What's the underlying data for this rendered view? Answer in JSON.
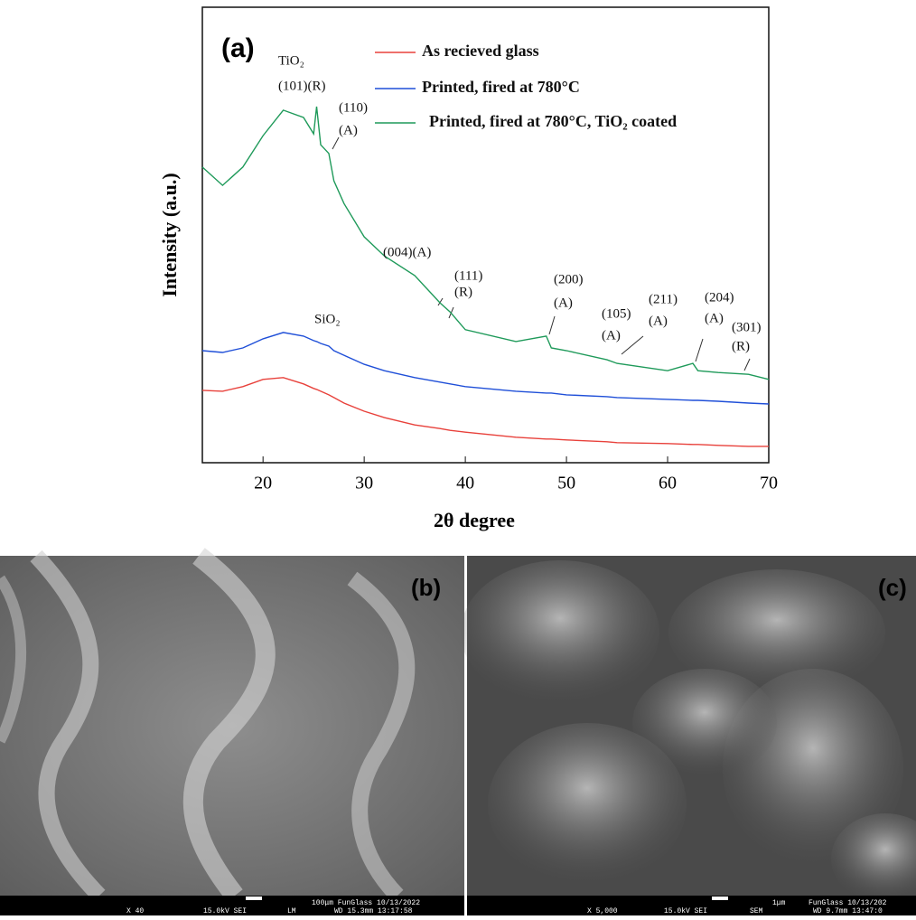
{
  "chart_data": {
    "type": "line",
    "panel_label": "(a)",
    "xlabel": "2θ degree",
    "ylabel": "Intensity (a.u.)",
    "x": [
      14,
      16,
      18,
      20,
      22,
      24,
      25,
      25.3,
      25.7,
      26.5,
      27,
      28,
      30,
      32,
      35,
      37.5,
      38.5,
      40,
      45,
      48,
      48.5,
      50,
      54,
      55,
      60,
      62.5,
      63,
      65,
      68,
      70
    ],
    "series": [
      {
        "name": "As recieved glass",
        "color": "#e8413b",
        "values": [
          15.9,
          15.7,
          16.7,
          18.3,
          18.7,
          17.3,
          16.3,
          16.1,
          15.7,
          14.9,
          14.3,
          13.1,
          11.3,
          9.9,
          8.3,
          7.5,
          7.1,
          6.7,
          5.6,
          5.2,
          5.2,
          5.0,
          4.6,
          4.4,
          4.2,
          4.0,
          4.0,
          3.8,
          3.6,
          3.6
        ]
      },
      {
        "name": "Printed, fired at 780°C",
        "color": "#1f4fd8",
        "values": [
          24.6,
          24.2,
          25.2,
          27.2,
          28.6,
          27.8,
          26.8,
          26.6,
          26.2,
          25.6,
          24.6,
          23.6,
          21.6,
          20.2,
          18.7,
          17.7,
          17.3,
          16.7,
          15.7,
          15.3,
          15.3,
          14.9,
          14.5,
          14.3,
          13.9,
          13.7,
          13.7,
          13.5,
          13.1,
          12.9
        ]
      },
      {
        "name": "Printed, fired at 780°C, TiO₂ coated",
        "color": "#1f9a5a",
        "values": [
          64.9,
          60.9,
          64.9,
          71.8,
          77.4,
          75.8,
          72.2,
          78.2,
          69.8,
          67.9,
          61.9,
          56.9,
          49.6,
          45.4,
          41.1,
          35.1,
          33.1,
          29.2,
          26.6,
          27.8,
          25.2,
          24.6,
          22.6,
          21.8,
          20.2,
          21.8,
          20.2,
          19.8,
          19.4,
          18.3
        ]
      }
    ],
    "xlim": [
      14,
      70
    ],
    "xticks": [
      20,
      30,
      40,
      50,
      60,
      70
    ],
    "ylim": [
      0,
      100
    ],
    "annotations": [
      "TiO₂",
      "(101)(R)",
      "(110)",
      "(A)",
      "(004)(A)",
      "(111)",
      "(R)",
      "(200)",
      "(A)",
      "(105)",
      "(A)",
      "(211)",
      "(A)",
      "(204)",
      "(A)",
      "(301)",
      "(R)",
      "SiO₂"
    ]
  },
  "images": [
    {
      "label": "(b)",
      "footer": [
        "X 40",
        "15.0kV SEI",
        "LM",
        "100μm FunGlass 10/13/2022",
        "WD 15.3mm 13:17:58"
      ]
    },
    {
      "label": "(c)",
      "footer": [
        "X 5,000",
        "15.0kV SEI",
        "SEM",
        "1μm",
        "FunGlass 10/13/202",
        "WD 9.7mm 13:47:0"
      ]
    }
  ]
}
